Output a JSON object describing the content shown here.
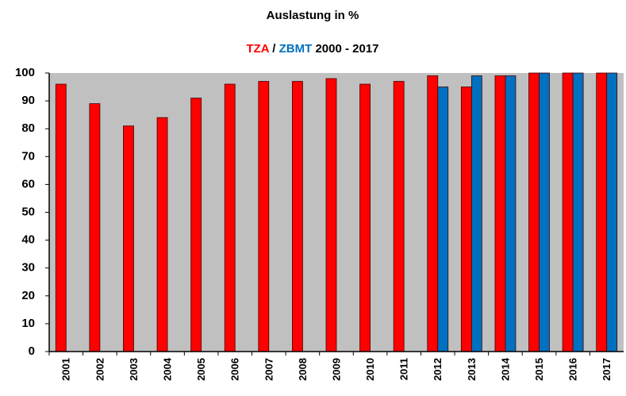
{
  "chart_data": {
    "type": "bar",
    "title": "Auslastung in %",
    "subtitle_parts": [
      "/",
      "2000 - 2017"
    ],
    "categories": [
      "2001",
      "2002",
      "2003",
      "2004",
      "2005",
      "2006",
      "2007",
      "2008",
      "2009",
      "2010",
      "2011",
      "2012",
      "2013",
      "2014",
      "2015",
      "2016",
      "2017"
    ],
    "series": [
      {
        "name": "TZA",
        "color": "#ff0000",
        "values": [
          96,
          89,
          81,
          84,
          91,
          96,
          97,
          97,
          98,
          96,
          97,
          99,
          95,
          99,
          100,
          100,
          100
        ]
      },
      {
        "name": "ZBMT",
        "color": "#0070c0",
        "values": [
          null,
          null,
          null,
          null,
          null,
          null,
          null,
          null,
          null,
          null,
          null,
          95,
          99,
          99,
          100,
          100,
          100
        ]
      }
    ],
    "ylim": [
      0,
      100
    ],
    "yticks": [
      0,
      10,
      20,
      30,
      40,
      50,
      60,
      70,
      80,
      90,
      100
    ],
    "grid": false,
    "plot_background": "#c0c0c0"
  }
}
